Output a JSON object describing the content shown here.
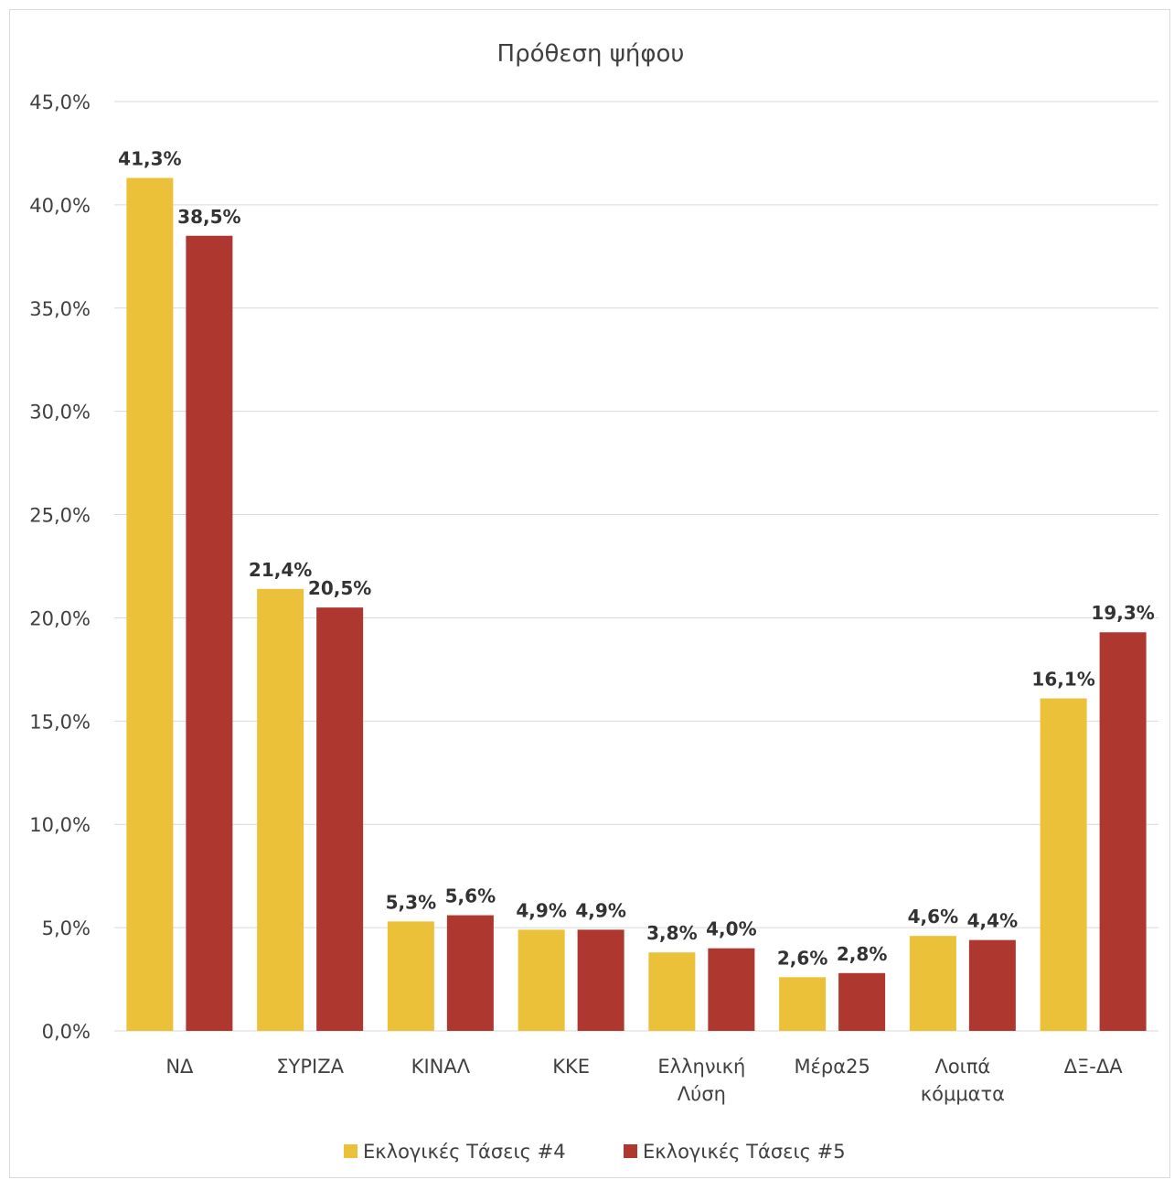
{
  "chart_data": {
    "type": "bar",
    "title": "Πρόθεση ψήφου",
    "xlabel": "",
    "ylabel": "",
    "ylim": [
      0,
      45
    ],
    "ytick_step": 5,
    "ytick_labels": [
      "0,0%",
      "5,0%",
      "10,0%",
      "15,0%",
      "20,0%",
      "25,0%",
      "30,0%",
      "35,0%",
      "40,0%",
      "45,0%"
    ],
    "grid": true,
    "legend_position": "bottom",
    "categories": [
      [
        "ΝΔ"
      ],
      [
        "ΣΥΡΙΖΑ"
      ],
      [
        "ΚΙΝΑΛ"
      ],
      [
        "ΚΚΕ"
      ],
      [
        "Ελληνική",
        "Λύση"
      ],
      [
        "Μέρα25"
      ],
      [
        "Λοιπά",
        "κόμματα"
      ],
      [
        "ΔΞ-ΔΑ"
      ]
    ],
    "series": [
      {
        "name": "Εκλογικές Τάσεις #4",
        "color": "#ecc13a",
        "values": [
          41.3,
          21.4,
          5.3,
          4.9,
          3.8,
          2.6,
          4.6,
          16.1
        ],
        "labels": [
          "41,3%",
          "21,4%",
          "5,3%",
          "4,9%",
          "3,8%",
          "2,6%",
          "4,6%",
          "16,1%"
        ]
      },
      {
        "name": "Εκλογικές Τάσεις #5",
        "color": "#ae382f",
        "values": [
          38.5,
          20.5,
          5.6,
          4.9,
          4.0,
          2.8,
          4.4,
          19.3
        ],
        "labels": [
          "38,5%",
          "20,5%",
          "5,6%",
          "4,9%",
          "4,0%",
          "2,8%",
          "4,4%",
          "19,3%"
        ]
      }
    ]
  }
}
